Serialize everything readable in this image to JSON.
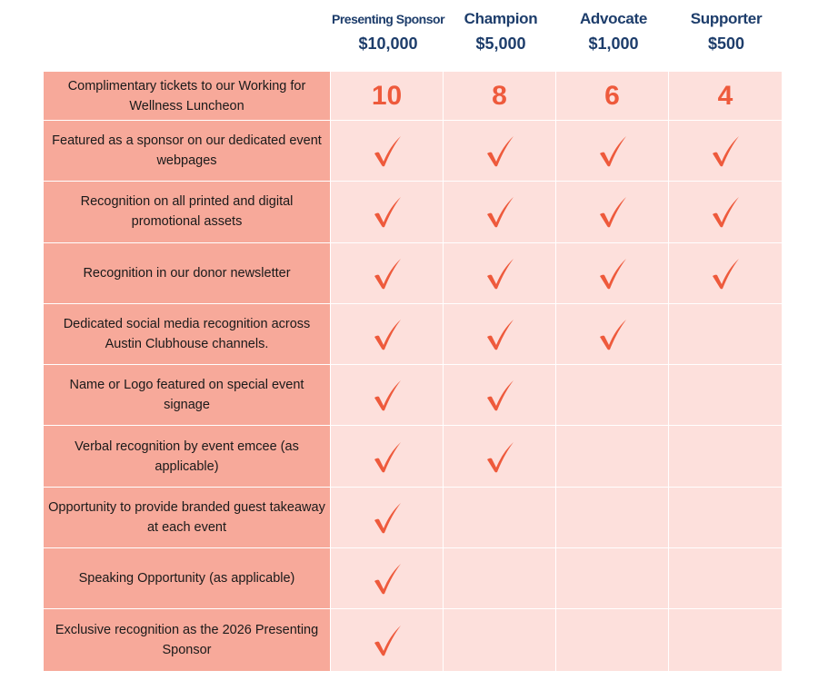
{
  "tiers": [
    {
      "name": "Presenting Sponsor",
      "price": "$10,000"
    },
    {
      "name": "Champion",
      "price": "$5,000"
    },
    {
      "name": "Advocate",
      "price": "$1,000"
    },
    {
      "name": "Supporter",
      "price": "$500"
    }
  ],
  "colors": {
    "heading": "#1d3d6b",
    "benefit_bg": "#f7a99a",
    "cell_bg": "#fde0dc",
    "accent": "#ee5a3c"
  },
  "rows": [
    {
      "label": "Complimentary tickets to our Working for Wellness Luncheon",
      "values": [
        "10",
        "8",
        "6",
        "4"
      ]
    },
    {
      "label": "Featured as a sponsor on our dedicated event webpages",
      "values": [
        true,
        true,
        true,
        true
      ]
    },
    {
      "label": "Recognition on all printed and digital promotional assets",
      "values": [
        true,
        true,
        true,
        true
      ]
    },
    {
      "label": "Recognition in our donor newsletter",
      "values": [
        true,
        true,
        true,
        true
      ]
    },
    {
      "label": "Dedicated social media recognition across Austin Clubhouse channels.",
      "values": [
        true,
        true,
        true,
        false
      ]
    },
    {
      "label": "Name or Logo featured on special event signage",
      "values": [
        true,
        true,
        false,
        false
      ]
    },
    {
      "label": "Verbal recognition by event emcee (as applicable)",
      "values": [
        true,
        true,
        false,
        false
      ]
    },
    {
      "label": "Opportunity to provide branded guest takeaway at each event",
      "values": [
        true,
        false,
        false,
        false
      ]
    },
    {
      "label": "Speaking Opportunity (as applicable)",
      "values": [
        true,
        false,
        false,
        false
      ]
    },
    {
      "label": "Exclusive recognition as the 2026 Presenting Sponsor",
      "values": [
        true,
        false,
        false,
        false
      ]
    }
  ]
}
